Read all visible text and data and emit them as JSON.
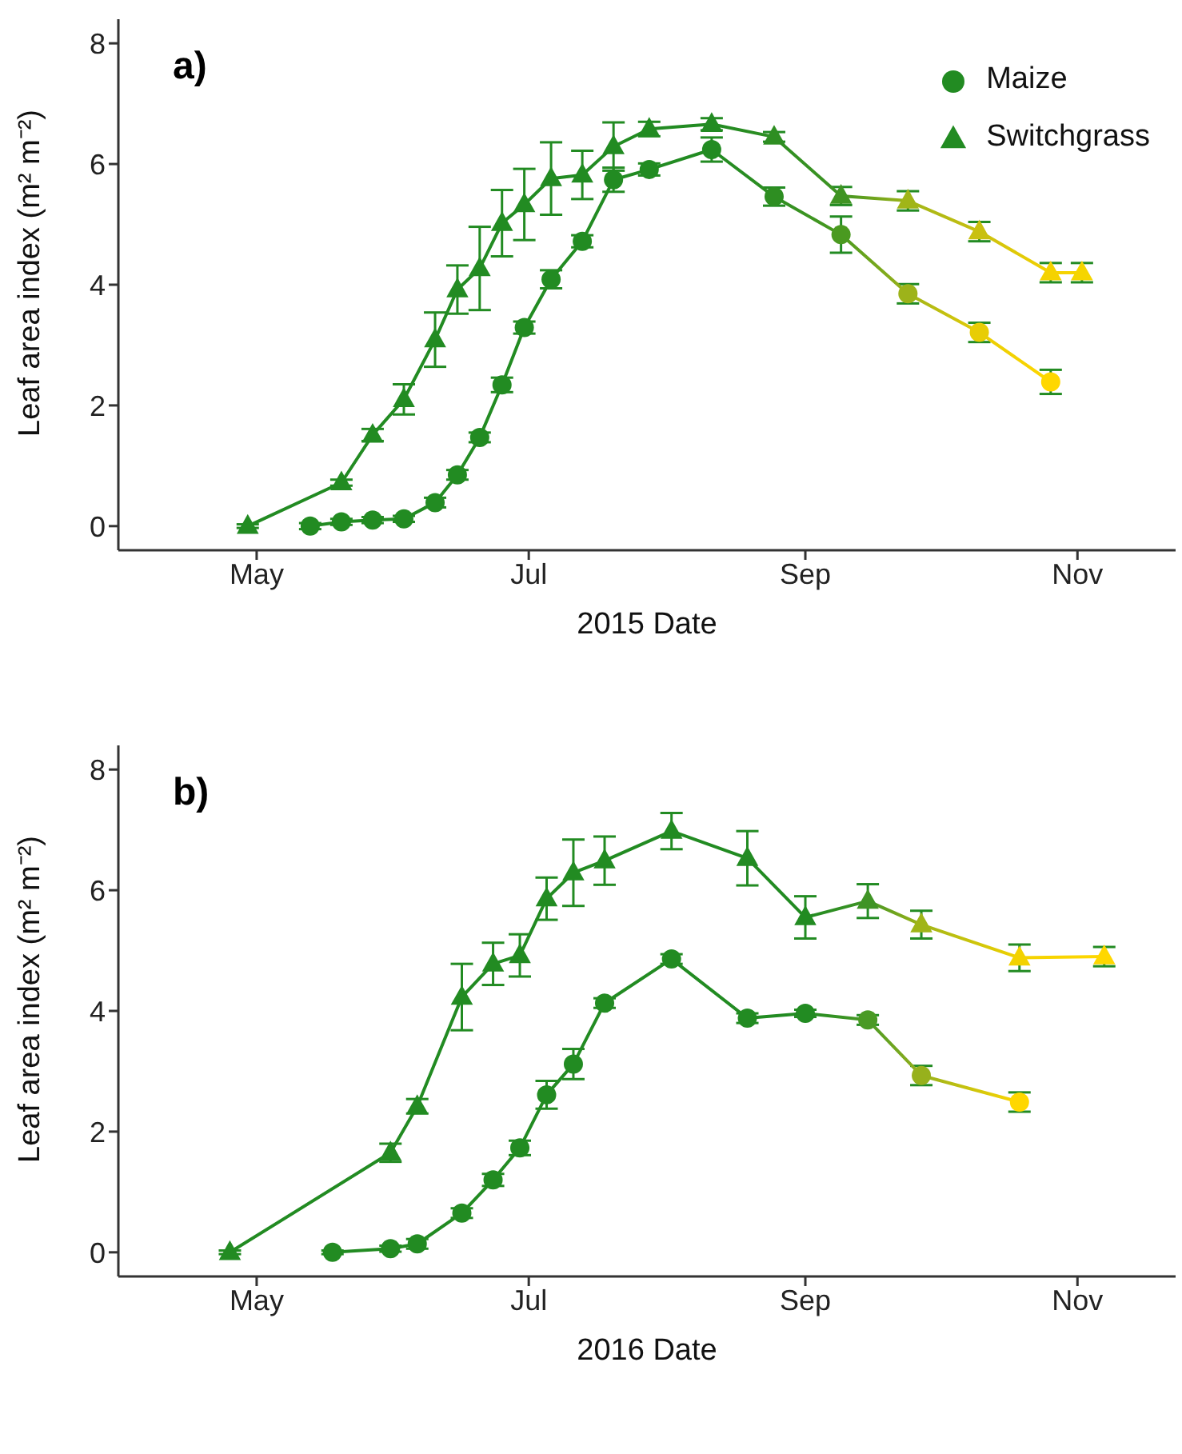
{
  "chart_data": [
    {
      "type": "line",
      "title": "a)",
      "xlabel": "2015 Date",
      "ylabel": "Leaf area index (m² m⁻²)",
      "xlim": [
        "2015-03-31",
        "2015-11-23"
      ],
      "xticks": [
        {
          "value": "2015-05-01",
          "label": "May"
        },
        {
          "value": "2015-07-01",
          "label": "Jul"
        },
        {
          "value": "2015-09-01",
          "label": "Sep"
        },
        {
          "value": "2015-11-01",
          "label": "Nov"
        }
      ],
      "ylim": [
        -0.4,
        8.4
      ],
      "yticks": [
        0,
        2,
        4,
        6,
        8
      ],
      "legend": "top right",
      "grid": false,
      "series": [
        {
          "name": "Maize",
          "marker": "circle",
          "color": "#228b22",
          "x": [
            "2015-05-13",
            "2015-05-20",
            "2015-05-27",
            "2015-06-03",
            "2015-06-10",
            "2015-06-15",
            "2015-06-20",
            "2015-06-25",
            "2015-06-30",
            "2015-07-06",
            "2015-07-13",
            "2015-07-20",
            "2015-07-28",
            "2015-08-11",
            "2015-08-25",
            "2015-09-09",
            "2015-09-24",
            "2015-10-10",
            "2015-10-26"
          ],
          "values": [
            0,
            0.07,
            0.1,
            0.12,
            0.39,
            0.85,
            1.47,
            2.34,
            3.29,
            4.09,
            4.72,
            5.74,
            5.91,
            6.24,
            5.46,
            4.83,
            3.85,
            3.21,
            2.39
          ],
          "errors": [
            0.05,
            0.05,
            0.05,
            0.05,
            0.08,
            0.08,
            0.08,
            0.12,
            0.1,
            0.15,
            0.1,
            0.2,
            0.1,
            0.2,
            0.15,
            0.3,
            0.16,
            0.16,
            0.2
          ],
          "colors": [
            "#228b22",
            "#228b22",
            "#228b22",
            "#228b22",
            "#228b22",
            "#228b22",
            "#228b22",
            "#228b22",
            "#228b22",
            "#228b22",
            "#228b22",
            "#228b22",
            "#228b22",
            "#228b22",
            "#2e8e22",
            "#4a9a20",
            "#9db31a",
            "#e8cd05",
            "#ffd700"
          ]
        },
        {
          "name": "Switchgrass",
          "marker": "triangle",
          "color": "#228b22",
          "x": [
            "2015-04-29",
            "2015-05-20",
            "2015-05-27",
            "2015-06-03",
            "2015-06-10",
            "2015-06-15",
            "2015-06-20",
            "2015-06-25",
            "2015-06-30",
            "2015-07-06",
            "2015-07-13",
            "2015-07-20",
            "2015-07-28",
            "2015-08-11",
            "2015-08-25",
            "2015-09-09",
            "2015-09-24",
            "2015-10-10",
            "2015-10-26",
            "2015-11-02"
          ],
          "values": [
            0,
            0.72,
            1.51,
            2.1,
            3.09,
            3.92,
            4.27,
            5.02,
            5.33,
            5.76,
            5.82,
            6.29,
            6.58,
            6.66,
            6.45,
            5.47,
            5.39,
            4.88,
            4.2,
            4.2
          ],
          "errors": [
            0.03,
            0.05,
            0.1,
            0.25,
            0.45,
            0.4,
            0.69,
            0.55,
            0.59,
            0.6,
            0.4,
            0.4,
            0.12,
            0.1,
            0.08,
            0.15,
            0.16,
            0.16,
            0.16,
            0.16
          ],
          "colors": [
            "#228b22",
            "#228b22",
            "#228b22",
            "#228b22",
            "#228b22",
            "#228b22",
            "#228b22",
            "#228b22",
            "#228b22",
            "#228b22",
            "#228b22",
            "#228b22",
            "#228b22",
            "#228b22",
            "#2e8e22",
            "#3f9423",
            "#a0b518",
            "#c9c010",
            "#f5d200",
            "#f5d500"
          ]
        }
      ]
    },
    {
      "type": "line",
      "title": "b)",
      "xlabel": "2016 Date",
      "ylabel": "Leaf area index (m² m⁻²)",
      "xlim": [
        "2016-03-31",
        "2016-11-23"
      ],
      "xticks": [
        {
          "value": "2016-05-01",
          "label": "May"
        },
        {
          "value": "2016-07-01",
          "label": "Jul"
        },
        {
          "value": "2016-09-01",
          "label": "Sep"
        },
        {
          "value": "2016-11-01",
          "label": "Nov"
        }
      ],
      "ylim": [
        -0.4,
        8.4
      ],
      "yticks": [
        0,
        2,
        4,
        6,
        8
      ],
      "grid": false,
      "series": [
        {
          "marker": "circle",
          "color": "#228b22",
          "x": [
            "2016-05-18",
            "2016-05-31",
            "2016-06-06",
            "2016-06-16",
            "2016-06-23",
            "2016-06-29",
            "2016-07-05",
            "2016-07-11",
            "2016-07-18",
            "2016-08-02",
            "2016-08-19",
            "2016-09-01",
            "2016-09-15",
            "2016-09-27",
            "2016-10-19"
          ],
          "values": [
            0,
            0.06,
            0.14,
            0.65,
            1.2,
            1.73,
            2.61,
            3.12,
            4.13,
            4.86,
            3.88,
            3.96,
            3.85,
            2.93,
            2.49
          ],
          "errors": [
            0.03,
            0.05,
            0.08,
            0.08,
            0.1,
            0.12,
            0.23,
            0.25,
            0.08,
            0.08,
            0.08,
            0.06,
            0.08,
            0.16,
            0.16
          ],
          "colors": [
            "#228b22",
            "#228b22",
            "#228b22",
            "#228b22",
            "#228b22",
            "#228b22",
            "#228b22",
            "#228b22",
            "#228b22",
            "#228b22",
            "#228b22",
            "#228b22",
            "#4a9a25",
            "#97b11c",
            "#ffd700"
          ]
        },
        {
          "marker": "triangle",
          "color": "#228b22",
          "x": [
            "2016-04-25",
            "2016-05-31",
            "2016-06-06",
            "2016-06-16",
            "2016-06-23",
            "2016-06-29",
            "2016-07-05",
            "2016-07-11",
            "2016-07-18",
            "2016-08-02",
            "2016-08-19",
            "2016-09-01",
            "2016-09-15",
            "2016-09-27",
            "2016-10-19",
            "2016-11-07"
          ],
          "values": [
            0,
            1.65,
            2.42,
            4.23,
            4.78,
            4.92,
            5.86,
            6.29,
            6.49,
            6.98,
            6.53,
            5.55,
            5.82,
            5.43,
            4.88,
            4.9
          ],
          "errors": [
            0.03,
            0.15,
            0.12,
            0.55,
            0.35,
            0.35,
            0.35,
            0.55,
            0.4,
            0.3,
            0.45,
            0.35,
            0.28,
            0.23,
            0.22,
            0.16
          ],
          "colors": [
            "#228b22",
            "#228b22",
            "#228b22",
            "#228b22",
            "#228b22",
            "#228b22",
            "#228b22",
            "#228b22",
            "#228b22",
            "#228b22",
            "#228b22",
            "#228b22",
            "#3f9425",
            "#a0b518",
            "#f3d200",
            "#ffd700"
          ]
        }
      ]
    }
  ]
}
